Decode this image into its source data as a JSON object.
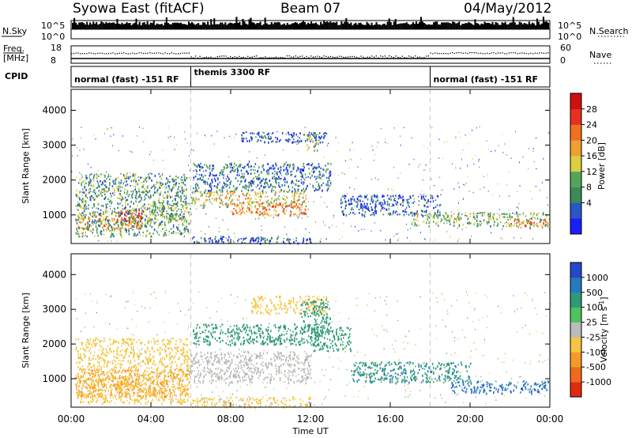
{
  "header": {
    "left": "Syowa East (fitACF)",
    "center": "Beam 07",
    "right": "04/May/2012"
  },
  "aux": {
    "nsky": {
      "label": "N.Sky",
      "ticks": [
        "10^5",
        "10^0"
      ]
    },
    "nsearch": {
      "label": "N.Search",
      "ticks": [
        "10^5",
        "10^0"
      ]
    },
    "freq": {
      "label_line1": "Freq.",
      "label_line2": "[MHz]",
      "ticks": [
        "18",
        "8"
      ]
    },
    "nave": {
      "label": "Nave",
      "ticks": [
        "60",
        "0"
      ]
    },
    "cpid": {
      "label": "CPID",
      "segments": [
        {
          "label": "normal (fast) -151 RF",
          "start_hour": 0,
          "end_hour": 6
        },
        {
          "label": "themis 3300 RF",
          "start_hour": 6,
          "end_hour": 18
        },
        {
          "label": "normal (fast) -151 RF",
          "start_hour": 18,
          "end_hour": 24
        }
      ]
    }
  },
  "axes": {
    "ylabel": "Slant Range [km]",
    "yticks": [
      "1000",
      "2000",
      "3000",
      "4000"
    ],
    "xlabel": "Time UT",
    "xticks": [
      "00:00",
      "04:00",
      "08:00",
      "12:00",
      "16:00",
      "20:00",
      "00:00"
    ]
  },
  "chart_data": [
    {
      "type": "heatmap",
      "name": "power",
      "xlabel": "Time UT",
      "ylabel": "Slant Range [km]",
      "xlim": [
        0,
        24
      ],
      "ylim": [
        180,
        4600
      ],
      "colorbar": {
        "label": "Power [dB]",
        "ticks": [
          "28",
          "24",
          "20",
          "16",
          "12",
          "8",
          "4"
        ],
        "range": [
          0,
          30
        ],
        "colors": [
          "#1c1cff",
          "#2a56c6",
          "#3a8a5a",
          "#54a45a",
          "#d8d040",
          "#f0a030",
          "#f07020",
          "#e83020",
          "#d01010"
        ]
      },
      "blobs": [
        {
          "t0": 0.2,
          "t1": 3.6,
          "r0": 600,
          "r1": 1100,
          "v": 20
        },
        {
          "t0": 2.3,
          "t1": 3.6,
          "r0": 800,
          "r1": 1200,
          "v": 25
        },
        {
          "t0": 0.2,
          "t1": 5.9,
          "r0": 400,
          "r1": 2200,
          "v": 10
        },
        {
          "t0": 3.8,
          "t1": 6.0,
          "r0": 800,
          "r1": 1300,
          "v": 13
        },
        {
          "t0": 6.0,
          "t1": 11.8,
          "r0": 1250,
          "r1": 1700,
          "v": 16
        },
        {
          "t0": 8.0,
          "t1": 11.8,
          "r0": 1000,
          "r1": 1400,
          "v": 20
        },
        {
          "t0": 6.1,
          "t1": 13.0,
          "r0": 1700,
          "r1": 2500,
          "v": 7
        },
        {
          "t0": 8.5,
          "t1": 12.8,
          "r0": 3100,
          "r1": 3400,
          "v": 4
        },
        {
          "t0": 11.8,
          "t1": 12.4,
          "r0": 2800,
          "r1": 3400,
          "v": 14
        },
        {
          "t0": 6.0,
          "t1": 12.5,
          "r0": 200,
          "r1": 400,
          "v": 6
        },
        {
          "t0": 13.5,
          "t1": 18.5,
          "r0": 1000,
          "r1": 1600,
          "v": 5
        },
        {
          "t0": 17.0,
          "t1": 23.9,
          "r0": 700,
          "r1": 1100,
          "v": 12
        },
        {
          "t0": 22.0,
          "t1": 23.9,
          "r0": 650,
          "r1": 900,
          "v": 20
        }
      ]
    },
    {
      "type": "heatmap",
      "name": "velocity",
      "xlabel": "Time UT",
      "ylabel": "Slant Range [km]",
      "xlim": [
        0,
        24
      ],
      "ylim": [
        180,
        4600
      ],
      "colorbar": {
        "label": "Velocity [m s",
        "label_superscript": "-1",
        "label_suffix": "]",
        "ticks": [
          "1000",
          "500",
          "100",
          "25",
          "-25",
          "-100",
          "-500",
          "-1000"
        ],
        "colors": [
          "#2448c8",
          "#2878c0",
          "#2e9a7a",
          "#4fc25a",
          "#bbbbbb",
          "#f5c542",
          "#f59a2a",
          "#f06a1a",
          "#e02a10"
        ]
      },
      "blobs": [
        {
          "t0": 0.2,
          "t1": 5.9,
          "r0": 500,
          "r1": 1300,
          "v": -300
        },
        {
          "t0": 0.2,
          "t1": 5.9,
          "r0": 300,
          "r1": 2200,
          "v": -50
        },
        {
          "t0": 5.9,
          "t1": 12.0,
          "r0": 900,
          "r1": 1800,
          "v": 0
        },
        {
          "t0": 6.1,
          "t1": 12.5,
          "r0": 2000,
          "r1": 2600,
          "v": 200
        },
        {
          "t0": 9.0,
          "t1": 12.8,
          "r0": 2900,
          "r1": 3400,
          "v": -50
        },
        {
          "t0": 11.5,
          "t1": 13.0,
          "r0": 2300,
          "r1": 3300,
          "v": 200
        },
        {
          "t0": 12.0,
          "t1": 14.0,
          "r0": 1800,
          "r1": 2500,
          "v": 150
        },
        {
          "t0": 14.0,
          "t1": 20.0,
          "r0": 900,
          "r1": 1500,
          "v": 400
        },
        {
          "t0": 19.0,
          "t1": 23.9,
          "r0": 600,
          "r1": 950,
          "v": 800
        },
        {
          "t0": 6.0,
          "t1": 12.0,
          "r0": 200,
          "r1": 500,
          "v": -40
        }
      ]
    }
  ]
}
